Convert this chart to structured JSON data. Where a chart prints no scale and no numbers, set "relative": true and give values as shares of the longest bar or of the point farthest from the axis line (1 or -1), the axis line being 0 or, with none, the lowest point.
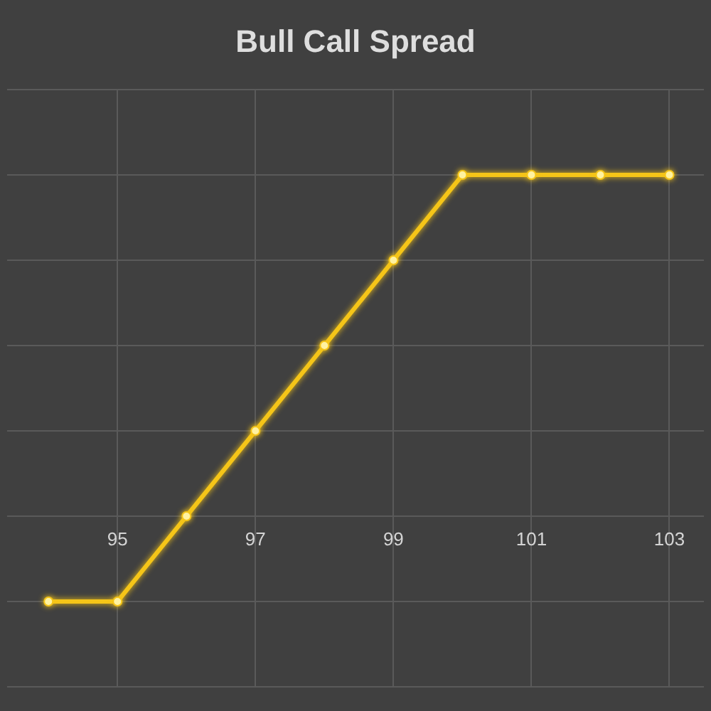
{
  "chart_data": {
    "type": "line",
    "title": "Bull Call Spread",
    "x": [
      94,
      95,
      96,
      97,
      98,
      99,
      100,
      101,
      102,
      103
    ],
    "series": [
      {
        "color": "#f5c518",
        "values": [
          -0.25,
          -0.25,
          0,
          0.25,
          0.5,
          0.75,
          1,
          1,
          1,
          1
        ]
      }
    ],
    "relative": true,
    "xlim": [
      93.4,
      103.5
    ],
    "xticks": [
      95,
      97,
      99,
      101,
      103
    ],
    "grid": true,
    "marker": "circle",
    "line_style": "solid"
  }
}
